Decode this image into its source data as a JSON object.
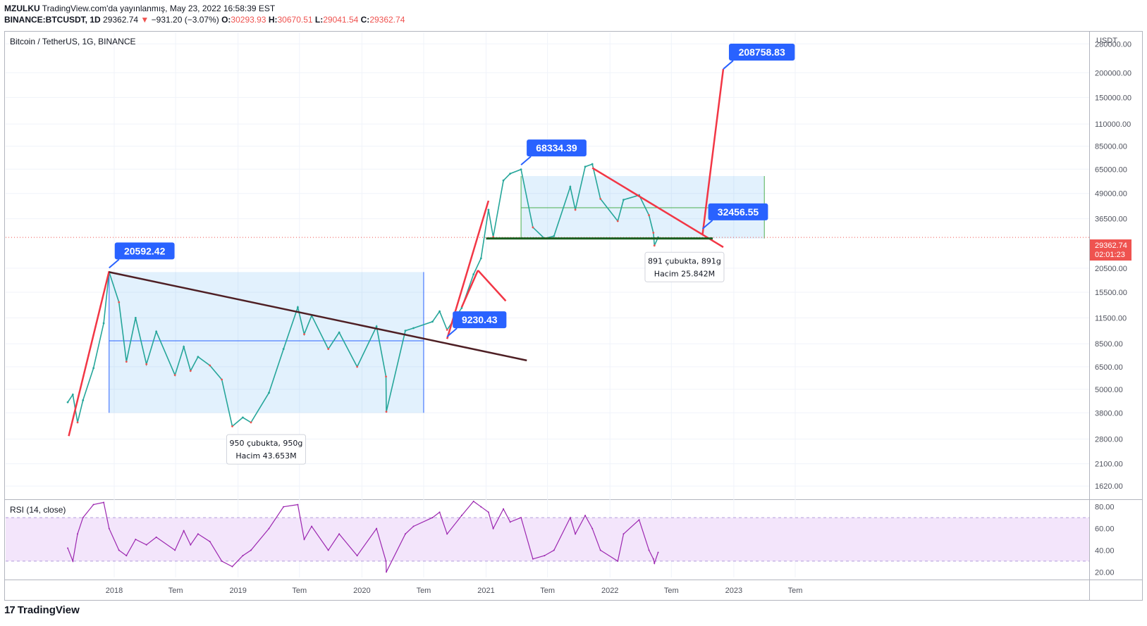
{
  "header": {
    "publisher": "MZULKU",
    "published_text": "TradingView.com'da yayınlanmış, May 23, 2022 16:58:39 EST",
    "symbol_line": "BINANCE:BTCUSDT, 1D",
    "last": "29362.74",
    "change": "−931.20 (−3.07%)",
    "o_label": "O:",
    "o_value": "30293.93",
    "h_label": "H:",
    "h_value": "30670.51",
    "l_label": "L:",
    "l_value": "29041.54",
    "c_label": "C:",
    "c_value": "29362.74"
  },
  "chart_data": {
    "type": "line",
    "title": "Bitcoin / TetherUS, 1G, BINANCE",
    "ylabel": "USDT",
    "yscale": "log",
    "ylim": [
      1400,
      320000
    ],
    "y_ticks": [
      280000,
      200000,
      150000,
      110000,
      85000,
      65000,
      49000,
      36500,
      20500,
      15500,
      11500,
      8500,
      6500,
      5000,
      3800,
      2800,
      2100,
      1620
    ],
    "y_tick_labels": [
      "280000.00",
      "200000.00",
      "150000.00",
      "110000.00",
      "85000.00",
      "65000.00",
      "49000.00",
      "36500.00",
      "20500.00",
      "15500.00",
      "11500.00",
      "8500.00",
      "6500.00",
      "5000.00",
      "3800.00",
      "2800.00",
      "2100.00",
      "1620.00"
    ],
    "x_labels": [
      "2018",
      "Tem",
      "2019",
      "Tem",
      "2020",
      "Tem",
      "2021",
      "Tem",
      "2022",
      "Tem",
      "2023",
      "Tem"
    ],
    "x_label_dates": [
      "2018-01-01",
      "2018-07-01",
      "2019-01-01",
      "2019-07-01",
      "2020-01-01",
      "2020-07-01",
      "2021-01-01",
      "2021-07-01",
      "2022-01-01",
      "2022-07-01",
      "2023-01-01",
      "2023-07-01"
    ],
    "series": [
      {
        "x": [
          "2017-08-17",
          "2017-09-01",
          "2017-09-15",
          "2017-10-01",
          "2017-11-01",
          "2017-12-01",
          "2017-12-17",
          "2018-01-15",
          "2018-02-06",
          "2018-03-05",
          "2018-04-06",
          "2018-05-05",
          "2018-06-29",
          "2018-07-25",
          "2018-08-14",
          "2018-09-05",
          "2018-10-10",
          "2018-11-14",
          "2018-12-15",
          "2019-01-15",
          "2019-02-08",
          "2019-04-02",
          "2019-05-15",
          "2019-06-26",
          "2019-07-15",
          "2019-08-06",
          "2019-09-24",
          "2019-10-26",
          "2019-12-18",
          "2020-02-13",
          "2020-03-12",
          "2020-03-13",
          "2020-05-08",
          "2020-06-01",
          "2020-07-27",
          "2020-08-17",
          "2020-09-08",
          "2020-10-21",
          "2020-11-25",
          "2020-12-17",
          "2021-01-08",
          "2021-01-22",
          "2021-02-21",
          "2021-03-13",
          "2021-04-14",
          "2021-05-19",
          "2021-06-22",
          "2021-07-20",
          "2021-09-06",
          "2021-09-21",
          "2021-10-20",
          "2021-11-10",
          "2021-12-04",
          "2022-01-24",
          "2022-02-10",
          "2022-03-28",
          "2022-04-26",
          "2022-05-09",
          "2022-05-12",
          "2022-05-23"
        ],
        "values": [
          4300,
          4700,
          3400,
          4400,
          6400,
          10800,
          19600,
          13800,
          6900,
          11500,
          6700,
          9800,
          5900,
          8200,
          6200,
          7300,
          6600,
          5600,
          3250,
          3600,
          3400,
          4800,
          8000,
          13000,
          9500,
          11800,
          8000,
          9700,
          6500,
          10400,
          5800,
          3850,
          9900,
          10200,
          11000,
          12400,
          10000,
          12900,
          19100,
          23000,
          40500,
          29500,
          57000,
          61700,
          64800,
          33000,
          29000,
          29800,
          52900,
          40500,
          66900,
          69000,
          46000,
          35500,
          45500,
          48000,
          38000,
          31000,
          26700,
          29362.74
        ]
      }
    ],
    "rsi": {
      "label": "RSI (14, close)",
      "ylim": [
        15,
        85
      ],
      "ticks": [
        80,
        60,
        40,
        20
      ],
      "tick_labels": [
        "80.00",
        "60.00",
        "40.00",
        "20.00"
      ],
      "band": [
        30,
        70
      ],
      "values": [
        42,
        30,
        55,
        70,
        82,
        84,
        60,
        40,
        35,
        50,
        45,
        52,
        40,
        58,
        45,
        55,
        48,
        30,
        25,
        35,
        40,
        60,
        80,
        82,
        50,
        62,
        40,
        55,
        35,
        60,
        30,
        20,
        55,
        62,
        70,
        75,
        55,
        72,
        85,
        80,
        75,
        60,
        78,
        66,
        70,
        32,
        35,
        40,
        70,
        55,
        72,
        60,
        40,
        30,
        55,
        68,
        40,
        32,
        28,
        38
      ]
    },
    "last_price_label": "29362.74",
    "countdown": "02:01:23",
    "annotations": [
      {
        "text": "20592.42",
        "x": "2017-12-17",
        "y": 20592.42
      },
      {
        "text": "9230.43",
        "x": "2020-09-08",
        "y": 9230.43
      },
      {
        "text": "68334.39",
        "x": "2021-04-14",
        "y": 68334.39
      },
      {
        "text": "32456.55",
        "x": "2022-10-01",
        "y": 32456.55
      },
      {
        "text": "208758.83",
        "x": "2022-12-01",
        "y": 208758.83
      }
    ],
    "range_notes": [
      {
        "line1": "950 çubukta, 950g",
        "line2": "Hacim 43.653M"
      },
      {
        "line1": "891 çubukta, 891g",
        "line2": "Hacim 25.842M"
      }
    ]
  },
  "footer": {
    "brand": "TradingView",
    "logo": "17"
  }
}
